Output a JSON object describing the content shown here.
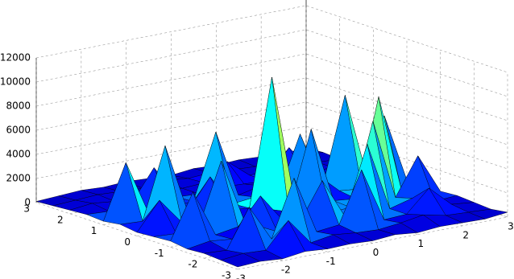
{
  "chart_data": {
    "type": "surface",
    "x": [
      -3,
      -2.5,
      -2,
      -1.5,
      -1,
      -0.5,
      0,
      0.5,
      1,
      1.5,
      2,
      2.5,
      3
    ],
    "y": [
      -3,
      -2.5,
      -2,
      -1.5,
      -1,
      -0.5,
      0,
      0.5,
      1,
      1.5,
      2,
      2.5,
      3
    ],
    "z": [
      [
        200,
        300,
        150,
        400,
        250,
        300,
        200,
        350,
        150,
        300,
        250,
        200,
        400
      ],
      [
        300,
        500,
        400,
        2500,
        300,
        600,
        400,
        300,
        500,
        800,
        400,
        300,
        200
      ],
      [
        400,
        300,
        3500,
        500,
        5200,
        400,
        600,
        4800,
        300,
        400,
        2200,
        500,
        300
      ],
      [
        300,
        600,
        400,
        1200,
        300,
        700,
        3800,
        500,
        6100,
        400,
        900,
        300,
        400
      ],
      [
        500,
        4200,
        300,
        600,
        2800,
        400,
        500,
        300,
        400,
        7200,
        500,
        3600,
        300
      ],
      [
        400,
        300,
        500,
        5600,
        400,
        900,
        300,
        6800,
        500,
        300,
        8400,
        400,
        200
      ],
      [
        300,
        2600,
        400,
        300,
        700,
        500,
        11000,
        400,
        2200,
        500,
        300,
        6000,
        300
      ],
      [
        500,
        400,
        6300,
        500,
        3000,
        400,
        600,
        300,
        5100,
        400,
        7600,
        300,
        400
      ],
      [
        300,
        4800,
        300,
        400,
        500,
        5900,
        300,
        700,
        400,
        600,
        300,
        500,
        200
      ],
      [
        400,
        300,
        600,
        3200,
        400,
        300,
        500,
        400,
        300,
        2700,
        400,
        300,
        300
      ],
      [
        300,
        500,
        300,
        400,
        600,
        300,
        400,
        1800,
        300,
        400,
        500,
        300,
        200
      ],
      [
        200,
        300,
        400,
        300,
        200,
        500,
        300,
        400,
        300,
        200,
        300,
        400,
        300
      ],
      [
        100,
        200,
        300,
        200,
        300,
        200,
        100,
        300,
        200,
        300,
        200,
        100,
        200
      ]
    ],
    "xlim": [
      -3,
      3
    ],
    "ylim": [
      -3,
      3
    ],
    "zlim": [
      0,
      12000
    ],
    "xticks": [
      -3,
      -2,
      -1,
      0,
      1,
      2,
      3
    ],
    "yticks": [
      -3,
      -2,
      -1,
      0,
      1,
      2,
      3
    ],
    "zticks": [
      0,
      2000,
      4000,
      6000,
      8000,
      10000,
      12000
    ],
    "grid": true,
    "colormap": "jet",
    "edge_color": "#000000"
  }
}
